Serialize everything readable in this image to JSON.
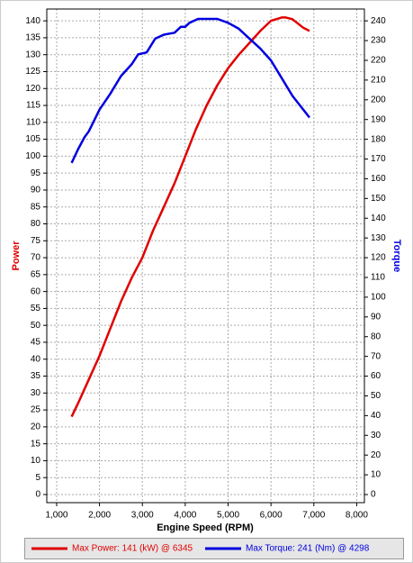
{
  "chart_data": {
    "type": "line",
    "xlabel": "Engine Speed (RPM)",
    "ylabel": "Power",
    "y2label": "Torque",
    "xlim": [
      770,
      8180
    ],
    "xticks": [
      {
        "value": 1000,
        "label": "1,000"
      },
      {
        "value": 2000,
        "label": "2,000"
      },
      {
        "value": 3000,
        "label": "3,000"
      },
      {
        "value": 4000,
        "label": "4,000"
      },
      {
        "value": 5000,
        "label": "5,000"
      },
      {
        "value": 6000,
        "label": "6,000"
      },
      {
        "value": 7000,
        "label": "7,000"
      },
      {
        "value": 8000,
        "label": "8,000"
      }
    ],
    "ylim": [
      -2.4,
      143.5
    ],
    "yticks": [
      0,
      5,
      10,
      15,
      20,
      25,
      30,
      35,
      40,
      45,
      50,
      55,
      60,
      65,
      70,
      75,
      80,
      85,
      90,
      95,
      100,
      105,
      110,
      115,
      120,
      125,
      130,
      135,
      140
    ],
    "y2lim": [
      -4.1,
      246
    ],
    "y2ticks": [
      0,
      10,
      20,
      30,
      40,
      50,
      60,
      70,
      80,
      90,
      100,
      110,
      120,
      130,
      140,
      150,
      160,
      170,
      180,
      190,
      200,
      210,
      220,
      230,
      240
    ],
    "grid": true,
    "series": [
      {
        "name": "Max Power: 141 (kW) @ 6345",
        "color": "#e00000",
        "x": [
          1350,
          1500,
          1750,
          2000,
          2250,
          2500,
          2750,
          3000,
          3250,
          3500,
          3750,
          4000,
          4250,
          4500,
          4750,
          5000,
          5250,
          5500,
          5750,
          6000,
          6250,
          6345,
          6500,
          6750,
          6900
        ],
        "values": [
          23,
          27,
          34,
          41,
          49,
          57,
          64,
          70,
          78,
          85,
          92,
          100,
          108,
          115,
          121,
          126,
          130,
          133.5,
          137,
          140,
          141,
          141,
          140.5,
          138,
          137
        ]
      },
      {
        "name": "Max Torque: 241 (Nm) @ 4298",
        "color": "#0000e0",
        "axis": "y2",
        "x": [
          1350,
          1500,
          1650,
          1750,
          2000,
          2250,
          2500,
          2750,
          2900,
          3100,
          3300,
          3500,
          3750,
          3900,
          4000,
          4100,
          4298,
          4500,
          4750,
          5000,
          5250,
          5500,
          5750,
          6000,
          6250,
          6500,
          6900
        ],
        "values": [
          168,
          175,
          181,
          184,
          195,
          203,
          212,
          218,
          223,
          224,
          231,
          233,
          234,
          237,
          237,
          239,
          241,
          241,
          241,
          239,
          236,
          231,
          226,
          220,
          211,
          202,
          191
        ]
      }
    ]
  }
}
